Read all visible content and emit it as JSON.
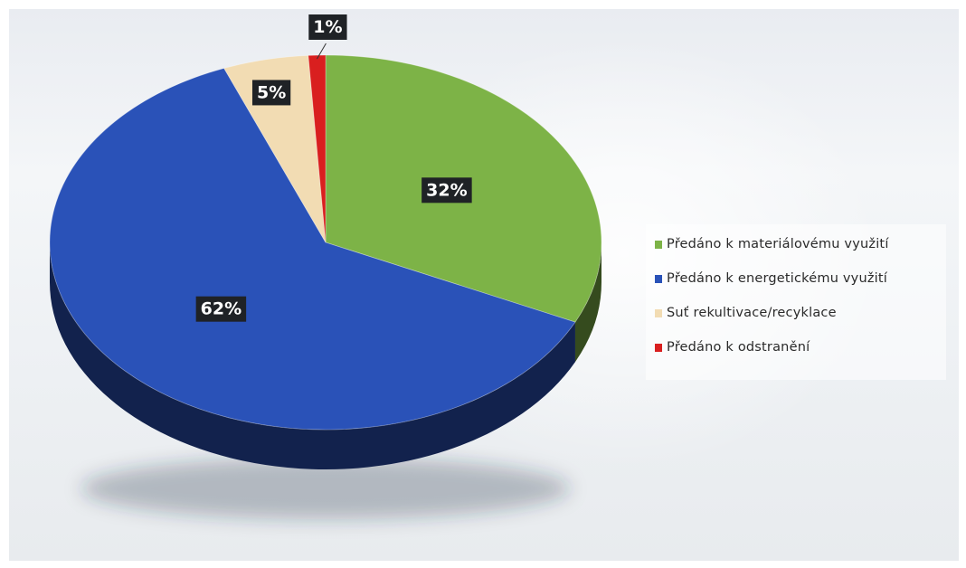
{
  "chart_data": {
    "type": "pie",
    "series": [
      {
        "name": "Předáno k materiálovému využití",
        "value": 32,
        "label": "32%",
        "color": "#7db347"
      },
      {
        "name": "Předáno k energetickému využití",
        "value": 62,
        "label": "62%",
        "color": "#2a52b8"
      },
      {
        "name": "Suť rekultivace/recyklace",
        "value": 5,
        "label": "5%",
        "color": "#f2dcb3"
      },
      {
        "name": "Předáno k odstranění",
        "value": 1,
        "label": "1%",
        "color": "#d91f1f"
      }
    ],
    "legend_position": "right",
    "style": "3d"
  }
}
